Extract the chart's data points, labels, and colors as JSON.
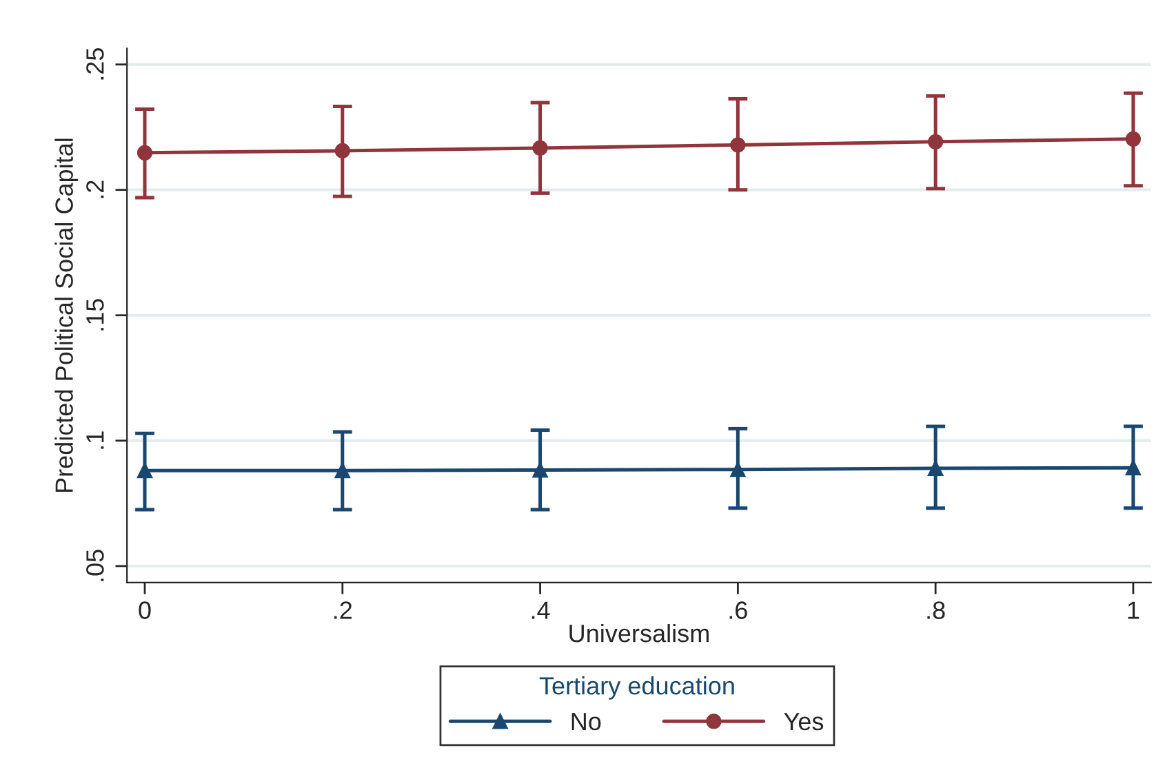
{
  "chart_data": {
    "type": "line",
    "xlabel": "Universalism",
    "ylabel": "Predicted Political Social Capital",
    "legend_title": "Tertiary education",
    "x": [
      0,
      0.2,
      0.4,
      0.6,
      0.8,
      1
    ],
    "series": [
      {
        "name": "No",
        "color": "#1a476f",
        "marker": "triangle",
        "values": [
          0.0881,
          0.0881,
          0.0883,
          0.0885,
          0.089,
          0.0892
        ],
        "errors": [
          [
            0.0725,
            0.1029
          ],
          [
            0.0725,
            0.1035
          ],
          [
            0.0725,
            0.1042
          ],
          [
            0.0731,
            0.1048
          ],
          [
            0.0731,
            0.1057
          ],
          [
            0.0731,
            0.1057
          ]
        ]
      },
      {
        "name": "Yes",
        "color": "#90353b",
        "marker": "circle",
        "values": [
          0.2148,
          0.2156,
          0.2167,
          0.2179,
          0.2192,
          0.2203
        ],
        "errors": [
          [
            0.1969,
            0.2322
          ],
          [
            0.1974,
            0.2333
          ],
          [
            0.1987,
            0.2348
          ],
          [
            0.2,
            0.2363
          ],
          [
            0.2005,
            0.2375
          ],
          [
            0.2016,
            0.2386
          ]
        ]
      }
    ],
    "xlim": [
      -0.018,
      1.018
    ],
    "xticks": [
      {
        "value": 0,
        "label": "0"
      },
      {
        "value": 0.2,
        "label": ".2"
      },
      {
        "value": 0.4,
        "label": ".4"
      },
      {
        "value": 0.6,
        "label": ".6"
      },
      {
        "value": 0.8,
        "label": ".8"
      },
      {
        "value": 1,
        "label": "1"
      }
    ],
    "ylim": [
      0.0434,
      0.2564
    ],
    "yticks": [
      {
        "value": 0.05,
        "label": ".05"
      },
      {
        "value": 0.1,
        "label": ".1"
      },
      {
        "value": 0.15,
        "label": ".15"
      },
      {
        "value": 0.2,
        "label": ".2"
      },
      {
        "value": 0.25,
        "label": ".25"
      }
    ],
    "grid": "y",
    "legend": "bottom",
    "line_style": "solid"
  }
}
